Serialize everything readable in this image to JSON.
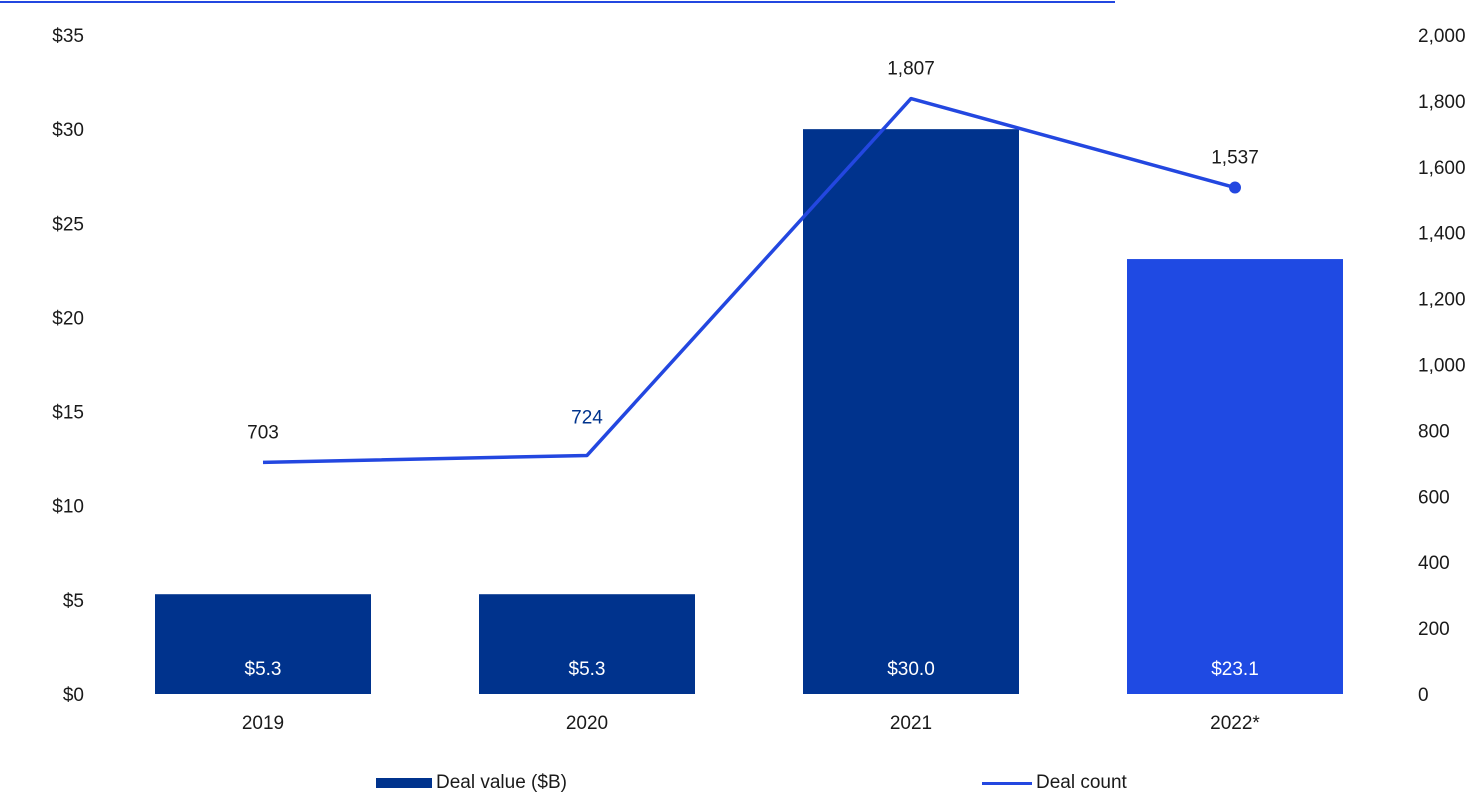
{
  "colors": {
    "bar_dark": "#00338d",
    "bar_highlight": "#1f4ae3",
    "line": "#2347e0",
    "label_dark": "#1a1a1a",
    "label_blue": "#00338d",
    "bar_label": "#ffffff"
  },
  "chart_data": {
    "type": "bar",
    "categories": [
      "2019",
      "2020",
      "2021",
      "2022*"
    ],
    "series": [
      {
        "name": "Deal value ($B)",
        "type": "bar",
        "axis": "left",
        "values": [
          5.3,
          5.3,
          30.0,
          23.1
        ],
        "labels": [
          "$5.3",
          "$5.3",
          "$30.0",
          "$23.1"
        ]
      },
      {
        "name": "Deal count",
        "type": "line",
        "axis": "right",
        "values": [
          703,
          724,
          1807,
          1537
        ],
        "labels": [
          "703",
          "724",
          "1,807",
          "1,537"
        ]
      }
    ],
    "ylim_left": [
      0,
      35
    ],
    "yticks_left": [
      "$0",
      "$5",
      "$10",
      "$15",
      "$20",
      "$25",
      "$30",
      "$35"
    ],
    "ylim_right": [
      0,
      2000
    ],
    "yticks_right": [
      "0",
      "200",
      "400",
      "600",
      "800",
      "1,000",
      "1,200",
      "1,400",
      "1,600",
      "1,800",
      "2,000"
    ],
    "grid": false,
    "legend_position": "bottom"
  },
  "legend": {
    "bar_label": "Deal value ($B)",
    "line_label": "Deal count"
  }
}
